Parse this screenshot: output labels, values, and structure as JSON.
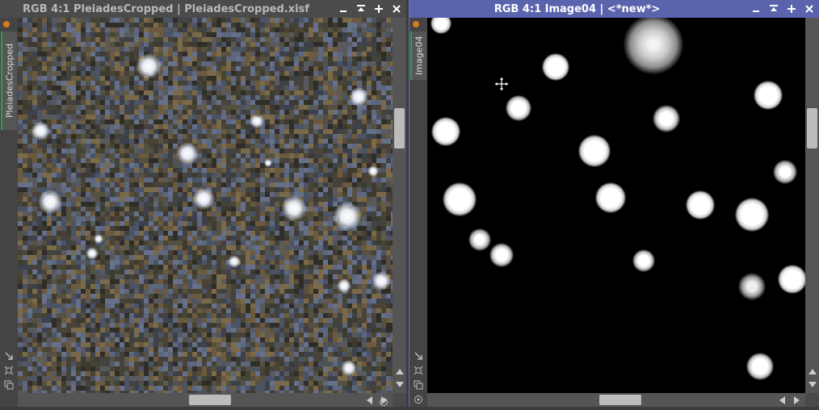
{
  "left_window": {
    "title": "RGB 4:1 PleiadesCropped | PleiadesCropped.xisf",
    "view_tab": "PleiadesCropped",
    "scroll": {
      "v_position": 0.5,
      "h_position": 0.5
    }
  },
  "right_window": {
    "title": "RGB 4:1 Image04 | <*new*>",
    "view_tab": "Image04",
    "scroll": {
      "v_position": 0.5,
      "h_position": 0.5
    }
  },
  "icons": {
    "window_buttons": [
      "minimize-icon",
      "shade-icon",
      "maximize-icon",
      "close-icon"
    ],
    "rail": [
      "fit-view-icon",
      "zoom-fit-icon",
      "clone-icon",
      "target-icon"
    ],
    "cursor": "move-cursor-icon"
  },
  "colors": {
    "active_title": "#5a64ad",
    "inactive_title": "#4b4b4b",
    "tab_accent": "#2e9e5a",
    "tab_dot": "#d97b1f"
  }
}
